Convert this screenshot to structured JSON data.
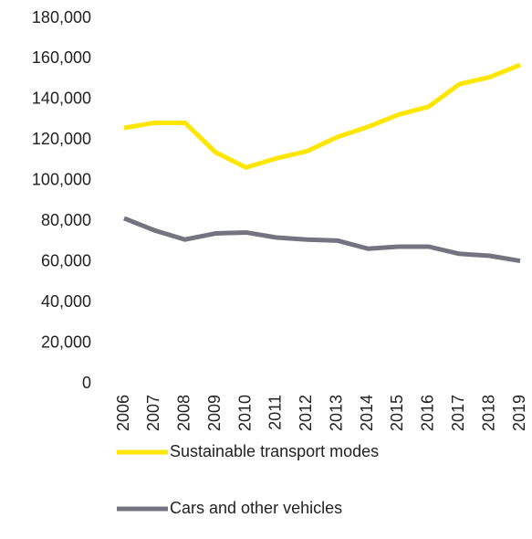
{
  "chart_data": {
    "type": "line",
    "categories": [
      "2006",
      "2007",
      "2008",
      "2009",
      "2010",
      "2011",
      "2012",
      "2013",
      "2014",
      "2015",
      "2016",
      "2017",
      "2018",
      "2019"
    ],
    "series": [
      {
        "name": "Sustainable transport modes",
        "color": "#ffe600",
        "values": [
          126000,
          128500,
          128500,
          114000,
          106500,
          111000,
          114500,
          121500,
          126500,
          132500,
          136500,
          147500,
          151000,
          157000
        ]
      },
      {
        "name": "Cars and other vehicles",
        "color": "#747480",
        "values": [
          81500,
          75500,
          71000,
          74000,
          74500,
          72000,
          71000,
          70500,
          66500,
          67500,
          67500,
          64000,
          63000,
          60500
        ]
      }
    ],
    "ylim": [
      0,
      180000
    ],
    "yticks": [
      0,
      {
        "value": 20000,
        "label": "20,000"
      },
      {
        "value": 40000,
        "label": "40,000"
      },
      {
        "value": 60000,
        "label": "60,000"
      },
      {
        "value": 80000,
        "label": "80,000"
      },
      {
        "value": 100000,
        "label": "100,000"
      },
      {
        "value": 120000,
        "label": "120,000"
      },
      {
        "value": 140000,
        "label": "140,000"
      },
      {
        "value": 160000,
        "label": "160,000"
      },
      {
        "value": 180000,
        "label": "180,000"
      }
    ],
    "grid": false
  }
}
